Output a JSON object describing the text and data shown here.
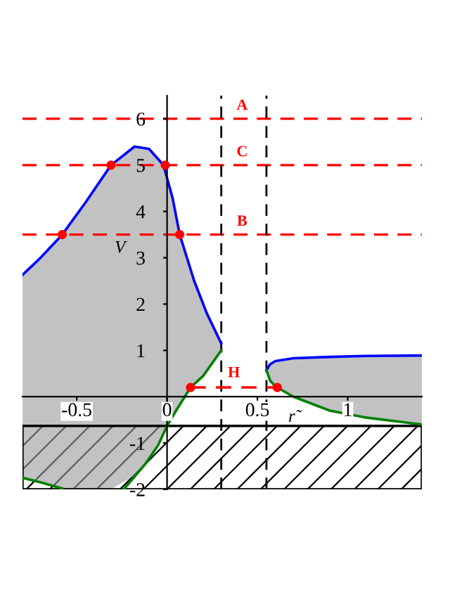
{
  "chart_data": {
    "type": "line",
    "xlabel": "r̃",
    "ylabel": "V",
    "xlim": [
      -0.8,
      1.41
    ],
    "ylim": [
      -2,
      6.5
    ],
    "xticks": [
      -0.5,
      0,
      0.5,
      1
    ],
    "yticks": [
      -2,
      -1,
      1,
      2,
      3,
      4,
      5,
      6
    ],
    "grid": false,
    "legend": false,
    "marker": "none",
    "line_style": "solid",
    "series": [
      {
        "type": "line",
        "color": "#0000ff",
        "x": [
          -0.8,
          -0.7,
          -0.58,
          -0.45,
          -0.31,
          -0.18,
          -0.1,
          -0.02,
          0.03,
          0.07,
          0.15,
          0.22,
          0.3
        ],
        "values": [
          2.63,
          3.0,
          3.5,
          4.2,
          5.0,
          5.4,
          5.35,
          5.0,
          4.3,
          3.5,
          2.5,
          1.8,
          1.15
        ],
        "lower": [
          -1.75,
          -1.85,
          -2,
          -2,
          -2,
          -1.7,
          -1.35,
          -0.78,
          -0.43,
          -0.15,
          0.27,
          0.55,
          1.0
        ],
        "upper": [
          2.63,
          3.0,
          3.5,
          4.2,
          5.0,
          5.4,
          5.35,
          5.0,
          4.3,
          3.5,
          2.5,
          1.8,
          1.15
        ]
      },
      {
        "type": "line",
        "color": "#0000ff",
        "x": [
          0.55,
          0.57,
          0.6,
          0.7,
          0.9,
          1.1,
          1.41
        ],
        "values": [
          0.57,
          0.7,
          0.77,
          0.83,
          0.86,
          0.88,
          0.89
        ],
        "lower": [
          0.57,
          0.35,
          0.22,
          0.0,
          -0.3,
          -0.45,
          -0.6
        ],
        "upper": [
          0.57,
          0.7,
          0.77,
          0.83,
          0.86,
          0.88,
          0.89
        ]
      },
      {
        "type": "line",
        "color": "#008000",
        "x": [
          0.3,
          0.2,
          0.13,
          0.05,
          0,
          -0.05,
          -0.12,
          -0.24
        ],
        "values": [
          1.0,
          0.45,
          0.2,
          -0.3,
          -0.63,
          -1.05,
          -1.45,
          -2
        ]
      },
      {
        "type": "line",
        "color": "#008000",
        "x": [
          -0.8,
          -0.7,
          -0.58
        ],
        "values": [
          -1.75,
          -1.85,
          -1.98
        ]
      },
      {
        "type": "line",
        "color": "#008000",
        "x": [
          0.55,
          0.57,
          0.6,
          0.7,
          0.9,
          1.1,
          1.41
        ],
        "values": [
          0.57,
          0.35,
          0.22,
          0.0,
          -0.3,
          -0.45,
          -0.6
        ]
      },
      {
        "type": "line",
        "name": "H",
        "color": "#ff0000",
        "line_style": "dashed",
        "x": [
          0.13,
          0.61
        ],
        "values": [
          0.2,
          0.2
        ]
      },
      {
        "type": "scatter",
        "color": "#ff0000",
        "marker": "circle",
        "x": [
          -0.58,
          -0.31,
          -0.01,
          0.07,
          0.13,
          0.61
        ],
        "values": [
          3.5,
          5,
          5,
          3.5,
          0.2,
          0.2
        ]
      }
    ],
    "ref_lines": [
      {
        "axis": "y",
        "value": 6,
        "label": "A",
        "color": "#ff0000",
        "line_style": "dashed"
      },
      {
        "axis": "y",
        "value": 5,
        "label": "C",
        "color": "#ff0000",
        "line_style": "dashed"
      },
      {
        "axis": "y",
        "value": 3.5,
        "label": "B",
        "color": "#ff0000",
        "line_style": "dashed"
      },
      {
        "axis": "x",
        "value": 0.3,
        "label": null,
        "color": "#000000",
        "line_style": "dashed"
      },
      {
        "axis": "x",
        "value": 0.55,
        "label": null,
        "color": "#000000",
        "line_style": "dashed"
      }
    ],
    "bands": [
      {
        "axis": "y",
        "from": -2,
        "to": -0.63,
        "label": null,
        "color": "#000000"
      }
    ]
  }
}
